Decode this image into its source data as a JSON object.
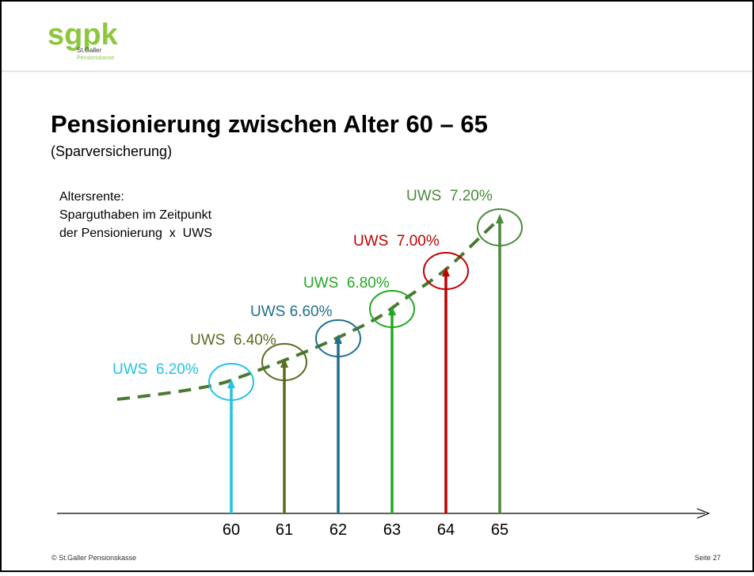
{
  "logo": {
    "mark": "sgpk",
    "line1": "St.Galler",
    "line2": "Pensionskasse"
  },
  "header": {
    "title": "Pensionierung zwischen Alter 60 – 65",
    "subtitle": "(Sparversicherung)"
  },
  "note": [
    "Altersrente:",
    "Sparguthaben im Zeitpunkt",
    "der Pensionierung  x  UWS"
  ],
  "nodes": [
    {
      "age": "60",
      "label": "UWS  6.20%",
      "color": "#22c3e6"
    },
    {
      "age": "61",
      "label": "UWS  6.40%",
      "color": "#5b6b1f"
    },
    {
      "age": "62",
      "label": "UWS 6.60%",
      "color": "#1f6f8b"
    },
    {
      "age": "63",
      "label": "UWS  6.80%",
      "color": "#22a823"
    },
    {
      "age": "64",
      "label": "UWS  7.00%",
      "color": "#c00000"
    },
    {
      "age": "65",
      "label": "UWS  7.20%",
      "color": "#4a8a3a"
    }
  ],
  "footer": {
    "left": "© St.Galler Pensionskasse",
    "right": "Seite 27"
  }
}
